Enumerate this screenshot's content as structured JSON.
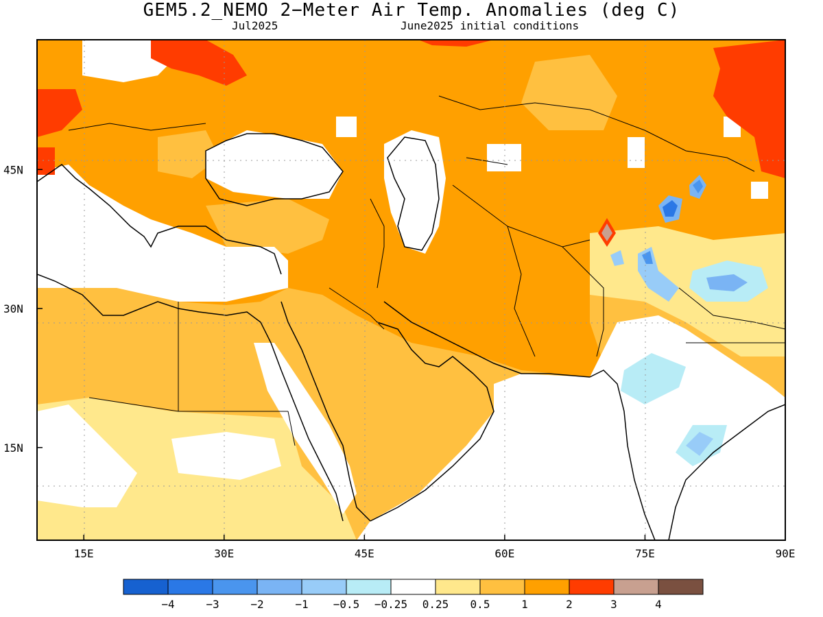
{
  "title": "GEM5.2_NEMO 2−Meter Air Temp. Anomalies (deg C)",
  "subtitle_left": "Jul2025",
  "subtitle_right": "June2025 initial conditions",
  "map": {
    "lon_range": [
      10,
      90
    ],
    "lat_range": [
      5,
      59
    ],
    "x_ticks": [
      {
        "value": 15,
        "label": "15E"
      },
      {
        "value": 30,
        "label": "30E"
      },
      {
        "value": 45,
        "label": "45E"
      },
      {
        "value": 60,
        "label": "60E"
      },
      {
        "value": 75,
        "label": "75E"
      },
      {
        "value": 90,
        "label": "90E"
      }
    ],
    "y_ticks": [
      {
        "value": 45,
        "label": "45N"
      },
      {
        "value": 30,
        "label": "30N"
      },
      {
        "value": 15,
        "label": "15N"
      }
    ],
    "grid": "dotted"
  },
  "colorbar": {
    "colors": [
      "#1661d0",
      "#2a78e6",
      "#4a95ee",
      "#7ab4f4",
      "#98ccf8",
      "#b8ecf6",
      "#ffffff",
      "#ffe88c",
      "#ffc040",
      "#ffa000",
      "#ff3c00",
      "#c8a090",
      "#7a5040"
    ],
    "labels": [
      "−4",
      "−3",
      "−2",
      "−1",
      "−0.5",
      "−0.25",
      "0.25",
      "0.5",
      "1",
      "2",
      "3",
      "4"
    ]
  }
}
